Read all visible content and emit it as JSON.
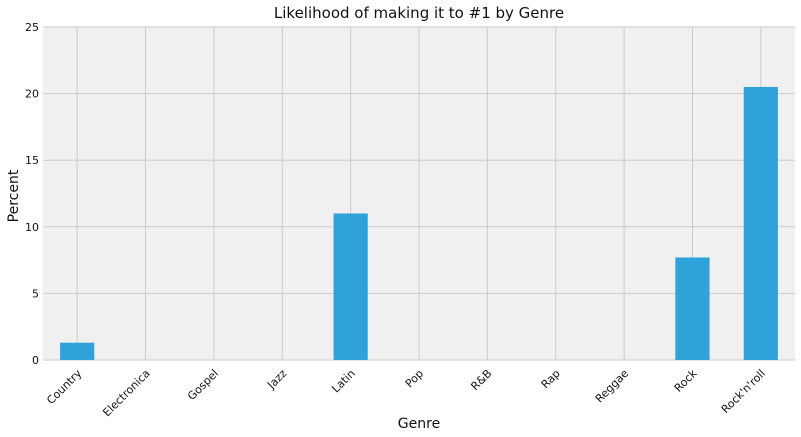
{
  "chart_data": {
    "type": "bar",
    "title": "Likelihood of making it to #1 by Genre",
    "xlabel": "Genre",
    "ylabel": "Percent",
    "categories": [
      "Country",
      "Electronica",
      "Gospel",
      "Jazz",
      "Latin",
      "Pop",
      "R&B",
      "Rap",
      "Reggae",
      "Rock",
      "Rock'n'roll"
    ],
    "values": [
      1.3,
      0,
      0,
      0,
      11.0,
      0,
      0,
      0,
      0,
      7.7,
      20.5
    ],
    "ylim": [
      0,
      25
    ],
    "yticks": [
      "0",
      "5",
      "10",
      "15",
      "20",
      "25"
    ],
    "grid": true,
    "legend": "none",
    "colors": {
      "bar": "#30a2da",
      "plot_background": "#f0f0f0",
      "grid": "#cbcbcb"
    }
  }
}
